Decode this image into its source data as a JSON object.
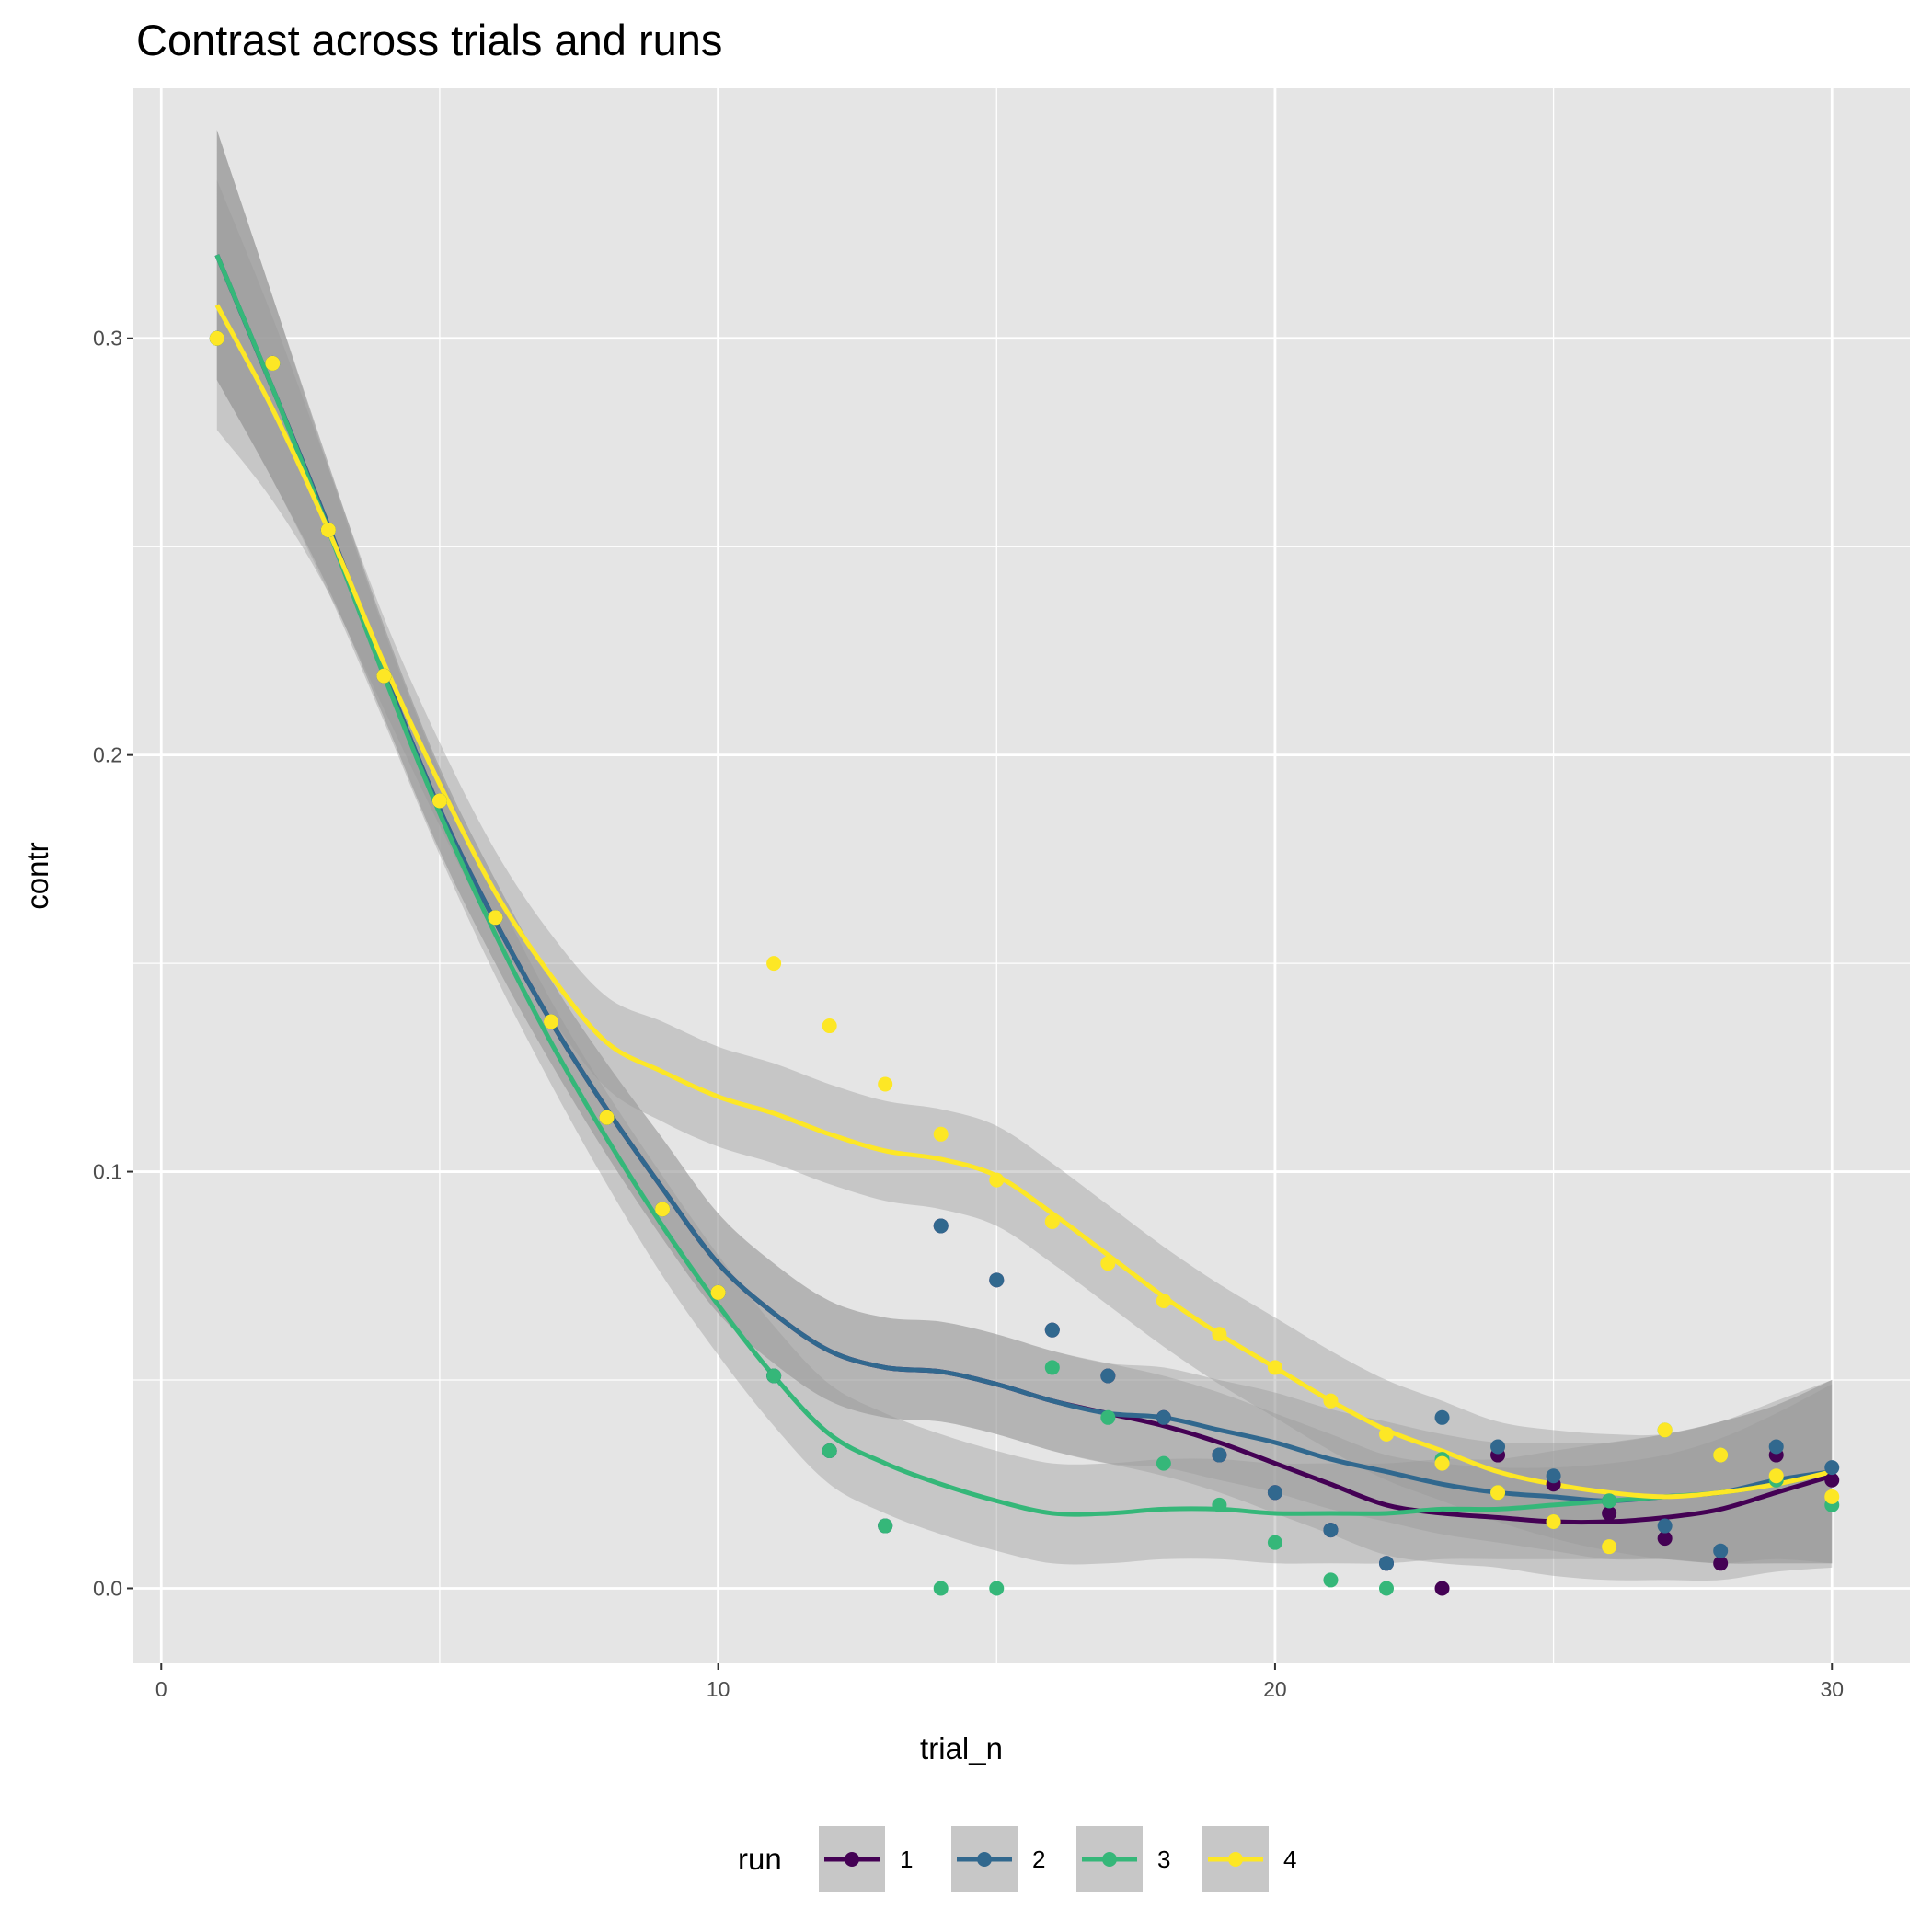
{
  "chart_data": {
    "type": "scatter",
    "title": "Contrast across trials and runs",
    "xlabel": "trial_n",
    "ylabel": "contr",
    "xlim": [
      -0.5,
      31.4
    ],
    "ylim": [
      -0.018,
      0.36
    ],
    "x_ticks": [
      0,
      10,
      20,
      30
    ],
    "x_tick_labels": [
      "0",
      "10",
      "20",
      "30"
    ],
    "x_minor": [
      5,
      15,
      25
    ],
    "y_ticks": [
      0,
      0.1,
      0.2,
      0.3
    ],
    "y_tick_labels": [
      "0.0",
      "0.1",
      "0.2",
      "0.3"
    ],
    "y_minor": [
      0.05,
      0.15,
      0.25
    ],
    "grid": true,
    "legend": {
      "title": "run",
      "position": "bottom"
    },
    "x": [
      1,
      2,
      3,
      4,
      5,
      6,
      7,
      8,
      9,
      10,
      11,
      12,
      13,
      14,
      15,
      16,
      17,
      18,
      19,
      20,
      21,
      22,
      23,
      24,
      25,
      26,
      27,
      28,
      29,
      30
    ],
    "se": [
      0.03,
      0.022,
      0.015,
      0.011,
      0.01,
      0.01,
      0.01,
      0.011,
      0.012,
      0.012,
      0.012,
      0.012,
      0.012,
      0.012,
      0.012,
      0.012,
      0.012,
      0.012,
      0.012,
      0.012,
      0.012,
      0.012,
      0.012,
      0.012,
      0.013,
      0.014,
      0.015,
      0.017,
      0.019,
      0.022
    ],
    "series": [
      {
        "name": "1",
        "color": "#440154",
        "values": [
          0.3,
          0.294,
          0.254,
          0.219,
          0.189,
          0.161,
          0.136,
          0.113,
          0.091,
          0.071,
          0.051,
          0.033,
          0.015,
          0.087,
          0.074,
          0.062,
          0.051,
          0.041,
          0.032,
          0.023,
          0.014,
          0.006,
          0.0,
          0.032,
          0.025,
          0.018,
          0.012,
          0.006,
          0.032,
          0.026
        ],
        "smooth": [
          0.32,
          0.288,
          0.255,
          0.22,
          0.187,
          0.16,
          0.136,
          0.115,
          0.096,
          0.078,
          0.066,
          0.057,
          0.053,
          0.052,
          0.049,
          0.045,
          0.042,
          0.039,
          0.035,
          0.03,
          0.025,
          0.02,
          0.018,
          0.017,
          0.016,
          0.016,
          0.017,
          0.019,
          0.023,
          0.027
        ]
      },
      {
        "name": "2",
        "color": "#31688E",
        "values": [
          0.3,
          0.294,
          0.254,
          0.219,
          0.189,
          0.161,
          0.136,
          0.113,
          0.091,
          0.071,
          0.051,
          0.033,
          0.015,
          0.087,
          0.074,
          0.062,
          0.051,
          0.041,
          0.032,
          0.023,
          0.014,
          0.006,
          0.041,
          0.034,
          0.027,
          0.021,
          0.015,
          0.009,
          0.034,
          0.029
        ],
        "smooth": [
          0.32,
          0.288,
          0.255,
          0.22,
          0.187,
          0.16,
          0.136,
          0.115,
          0.096,
          0.078,
          0.066,
          0.057,
          0.053,
          0.052,
          0.049,
          0.045,
          0.042,
          0.041,
          0.038,
          0.035,
          0.031,
          0.028,
          0.025,
          0.023,
          0.022,
          0.021,
          0.022,
          0.023,
          0.026,
          0.028
        ]
      },
      {
        "name": "3",
        "color": "#35B779",
        "values": [
          0.3,
          0.294,
          0.254,
          0.219,
          0.189,
          0.161,
          0.136,
          0.113,
          0.091,
          0.071,
          0.051,
          0.033,
          0.015,
          0.0,
          0.0,
          0.053,
          0.041,
          0.03,
          0.02,
          0.011,
          0.002,
          0.0,
          0.031,
          0.023,
          0.016,
          0.021,
          0.038,
          0.032,
          0.026,
          0.02
        ],
        "smooth": [
          0.32,
          0.288,
          0.254,
          0.219,
          0.186,
          0.157,
          0.131,
          0.108,
          0.087,
          0.068,
          0.051,
          0.037,
          0.03,
          0.025,
          0.021,
          0.018,
          0.018,
          0.019,
          0.019,
          0.018,
          0.018,
          0.018,
          0.019,
          0.019,
          0.02,
          0.021,
          0.022,
          0.023,
          0.025,
          0.028
        ]
      },
      {
        "name": "4",
        "color": "#FDE725",
        "values": [
          0.3,
          0.294,
          0.254,
          0.219,
          0.189,
          0.161,
          0.136,
          0.113,
          0.091,
          0.071,
          0.15,
          0.135,
          0.121,
          0.109,
          0.098,
          0.088,
          0.078,
          0.069,
          0.061,
          0.053,
          0.045,
          0.037,
          0.03,
          0.023,
          0.016,
          0.01,
          0.038,
          0.032,
          0.027,
          0.022
        ],
        "smooth": [
          0.308,
          0.283,
          0.254,
          0.222,
          0.193,
          0.167,
          0.147,
          0.131,
          0.124,
          0.118,
          0.114,
          0.109,
          0.105,
          0.103,
          0.099,
          0.09,
          0.08,
          0.07,
          0.061,
          0.053,
          0.045,
          0.038,
          0.033,
          0.028,
          0.025,
          0.023,
          0.022,
          0.023,
          0.025,
          0.028
        ]
      }
    ]
  }
}
